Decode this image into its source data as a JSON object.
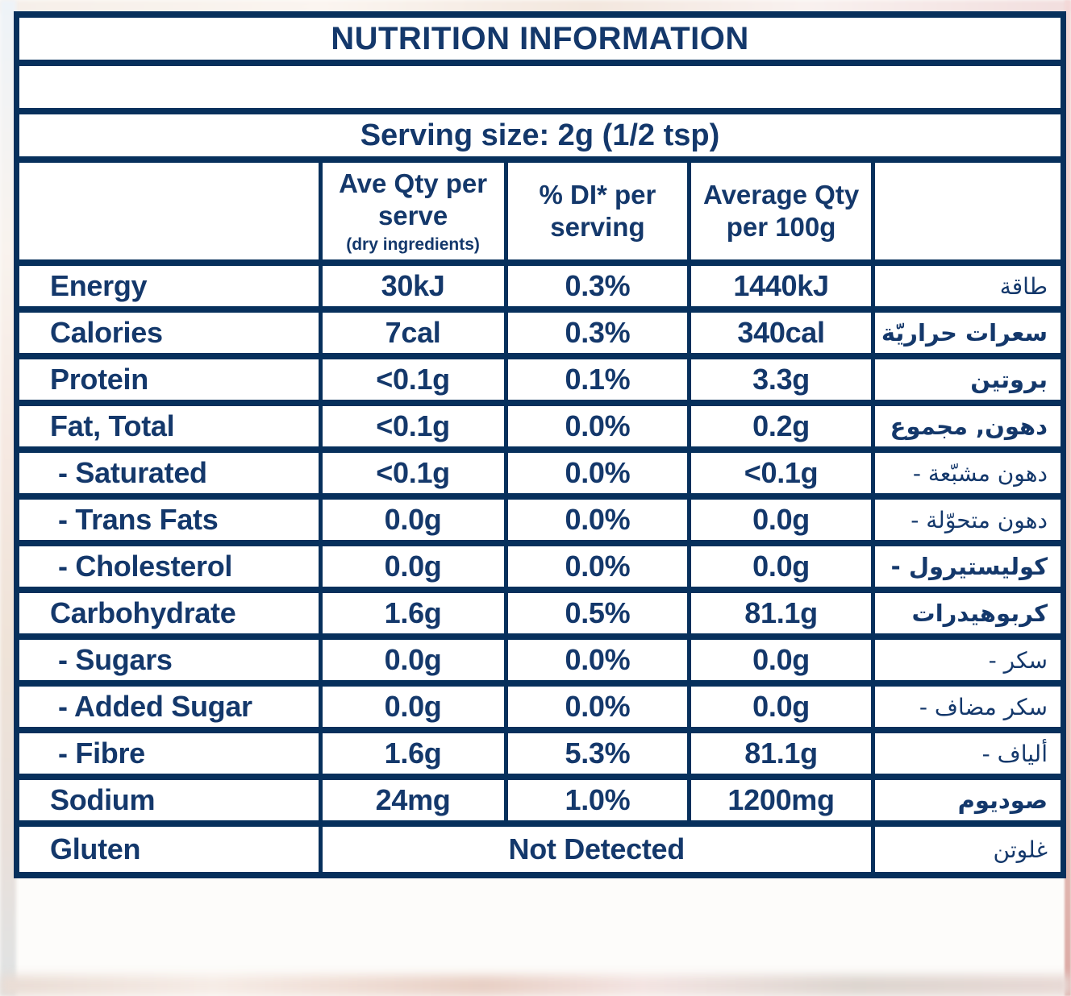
{
  "colors": {
    "navy_text": "#14386b",
    "navy_border": "#07305c",
    "table_background": "#ffffff"
  },
  "table": {
    "title": "NUTRITION INFORMATION",
    "serving_size": "Serving size: 2g (1/2 tsp)",
    "headers": {
      "per_serve": {
        "line1": "Ave Qty per",
        "line2": "serve",
        "note": "(dry ingredients)"
      },
      "di_percent": {
        "line1": "% DI* per",
        "line2": "serving"
      },
      "per_100g": {
        "line1": "Average Qty",
        "line2": "per 100g"
      }
    },
    "rows": [
      {
        "label": "Energy",
        "indent": false,
        "serve": "30kJ",
        "di": "0.3%",
        "per100": "1440kJ",
        "ar": "طاقة",
        "arBold": false
      },
      {
        "label": "Calories",
        "indent": false,
        "serve": "7cal",
        "di": "0.3%",
        "per100": "340cal",
        "ar": "سعرات حراريّة",
        "arBold": true
      },
      {
        "label": "Protein",
        "indent": false,
        "serve": "<0.1g",
        "di": "0.1%",
        "per100": "3.3g",
        "ar": "بروتين",
        "arBold": true
      },
      {
        "label": "Fat, Total",
        "indent": false,
        "serve": "<0.1g",
        "di": "0.0%",
        "per100": "0.2g",
        "ar": "دهون, مجموع",
        "arBold": true
      },
      {
        "label": "- Saturated",
        "indent": true,
        "serve": "<0.1g",
        "di": "0.0%",
        "per100": "<0.1g",
        "ar": "- دهون مشبّعة",
        "arBold": false
      },
      {
        "label": "- Trans Fats",
        "indent": true,
        "serve": "0.0g",
        "di": "0.0%",
        "per100": "0.0g",
        "ar": "- دهون متحوّلة",
        "arBold": false
      },
      {
        "label": "- Cholesterol",
        "indent": true,
        "serve": "0.0g",
        "di": "0.0%",
        "per100": "0.0g",
        "ar": "- كوليستيرول",
        "arBold": true
      },
      {
        "label": "Carbohydrate",
        "indent": false,
        "serve": "1.6g",
        "di": "0.5%",
        "per100": "81.1g",
        "ar": "كربوهيدرات",
        "arBold": true
      },
      {
        "label": "- Sugars",
        "indent": true,
        "serve": "0.0g",
        "di": "0.0%",
        "per100": "0.0g",
        "ar": "- سكر",
        "arBold": false
      },
      {
        "label": "- Added Sugar",
        "indent": true,
        "serve": "0.0g",
        "di": "0.0%",
        "per100": "0.0g",
        "ar": "- سكر مضاف",
        "arBold": false
      },
      {
        "label": "- Fibre",
        "indent": true,
        "serve": "1.6g",
        "di": "5.3%",
        "per100": "81.1g",
        "ar": "- ألياف",
        "arBold": false
      },
      {
        "label": "Sodium",
        "indent": false,
        "serve": "24mg",
        "di": "1.0%",
        "per100": "1200mg",
        "ar": "صوديوم",
        "arBold": true
      },
      {
        "label": "Gluten",
        "indent": false,
        "serve": "Not Detected",
        "span": true,
        "ar": "غلوتن",
        "arBold": false
      }
    ]
  }
}
